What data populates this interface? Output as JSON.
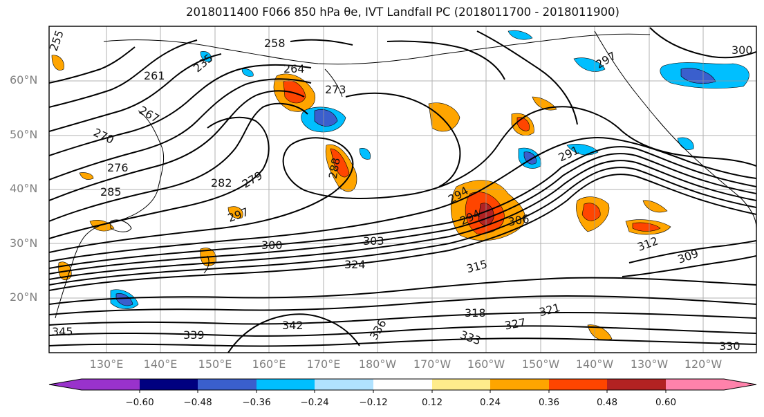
{
  "title": "2018011400 F066 850 hPa θe, IVT Landfall PC (2018011700 - 2018011900)",
  "lat_labels": [
    "60°N",
    "50°N",
    "40°N",
    "30°N",
    "20°N"
  ],
  "lon_labels": [
    "130°E",
    "140°E",
    "150°E",
    "160°E",
    "170°E",
    "180°W",
    "170°W",
    "160°W",
    "150°W",
    "140°W",
    "130°W",
    "120°W"
  ],
  "contour_labels": [
    "255",
    "261",
    "235",
    "258",
    "264",
    "273",
    "267",
    "270",
    "276",
    "285",
    "288",
    "279",
    "282",
    "297",
    "294",
    "291",
    "300",
    "303",
    "306",
    "309",
    "312",
    "315",
    "318",
    "321",
    "324",
    "327",
    "330",
    "333",
    "336",
    "339",
    "342",
    "345",
    "297",
    "294",
    "300"
  ],
  "colorbar": {
    "ticks": [
      "−0.60",
      "−0.48",
      "−0.36",
      "−0.24",
      "−0.12",
      "0.12",
      "0.24",
      "0.36",
      "0.48",
      "0.60"
    ],
    "colors": [
      "#9932cc",
      "#000080",
      "#3a5fcd",
      "#00bfff",
      "#b0e2ff",
      "#ffffff",
      "#ffec8b",
      "#ffa500",
      "#ff4500",
      "#b22222",
      "#ff82ab"
    ]
  }
}
